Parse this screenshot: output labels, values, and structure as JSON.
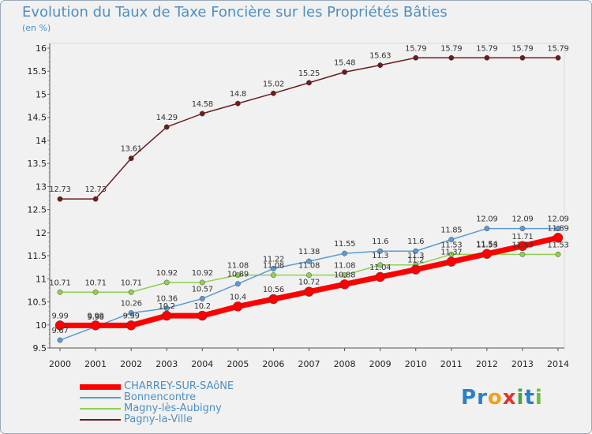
{
  "title": "Evolution du Taux de Taxe Foncière sur les Propriétés Bâties",
  "unit": "(en %)",
  "logo": {
    "letters": [
      "P",
      "r",
      "o",
      "x",
      "i",
      "t",
      "i"
    ],
    "colors": [
      "#2b7fc4",
      "#2b7fc4",
      "#f0a21a",
      "#e2332b",
      "#4aa53c",
      "#2b7fc4",
      "#6abf3b"
    ]
  },
  "chart_data": {
    "type": "line",
    "title": "Evolution du Taux de Taxe Foncière sur les Propriétés Bâties",
    "ylabel": "(en %)",
    "xlabel": "",
    "x": [
      "2000",
      "2001",
      "2002",
      "2003",
      "2004",
      "2005",
      "2006",
      "2007",
      "2008",
      "2009",
      "2010",
      "2011",
      "2012",
      "2013",
      "2014"
    ],
    "ylim": [
      9.5,
      16
    ],
    "yticks": [
      "9.5",
      "10",
      "10.5",
      "11",
      "11.5",
      "12",
      "12.5",
      "13",
      "13.5",
      "14",
      "14.5",
      "15",
      "15.5",
      "16"
    ],
    "grid": false,
    "series": [
      {
        "name": "Pagny-la-Ville",
        "color": "#6b1c1c",
        "values": [
          12.73,
          12.73,
          13.61,
          14.29,
          14.58,
          14.8,
          15.02,
          15.25,
          15.48,
          15.63,
          15.79,
          15.79,
          15.79,
          15.79,
          15.79
        ],
        "labels": [
          "12.73",
          "12.73",
          "13.61",
          "14.29",
          "14.58",
          "14.8",
          "15.02",
          "15.25",
          "15.48",
          "15.63",
          "15.79",
          "15.79",
          "15.79",
          "15.79",
          "15.79"
        ]
      },
      {
        "name": "Magny-lès-Aubigny",
        "color": "#8fd14f",
        "values": [
          10.71,
          10.71,
          10.71,
          10.92,
          10.92,
          11.08,
          11.08,
          11.08,
          11.08,
          11.3,
          11.3,
          11.53,
          11.53,
          11.53,
          11.53
        ],
        "labels": [
          "10.71",
          "10.71",
          "10.71",
          "10.92",
          "10.92",
          "11.08",
          "11.08",
          "11.08",
          "11.08",
          "11.3",
          "11.3",
          "11.53",
          "11.53",
          "11.53",
          "11.53"
        ]
      },
      {
        "name": "Bonnencontre",
        "color": "#5b9bd5",
        "values": [
          9.67,
          9.96,
          10.26,
          10.36,
          10.57,
          10.89,
          11.22,
          11.38,
          11.55,
          11.6,
          11.6,
          11.85,
          12.09,
          12.09,
          12.09
        ],
        "labels": [
          "9.67",
          "9.96",
          "10.26",
          "10.36",
          "10.57",
          "10.89",
          "11.22",
          "11.38",
          "11.55",
          "11.6",
          "11.6",
          "11.85",
          "12.09",
          "12.09",
          "12.09"
        ]
      },
      {
        "name": "CHARREY-SUR-SAôNE",
        "color": "#ff0000",
        "values": [
          9.99,
          9.99,
          9.99,
          10.2,
          10.2,
          10.4,
          10.56,
          10.72,
          10.88,
          11.04,
          11.2,
          11.37,
          11.54,
          11.71,
          11.89
        ],
        "labels": [
          "9.99",
          "9.99",
          "9.99",
          "10.2",
          "10.2",
          "10.4",
          "10.56",
          "10.72",
          "10.88",
          "11.04",
          "11.2",
          "11.37",
          "11.54",
          "11.71",
          "11.89"
        ]
      }
    ],
    "legend_position": "bottom-left"
  }
}
